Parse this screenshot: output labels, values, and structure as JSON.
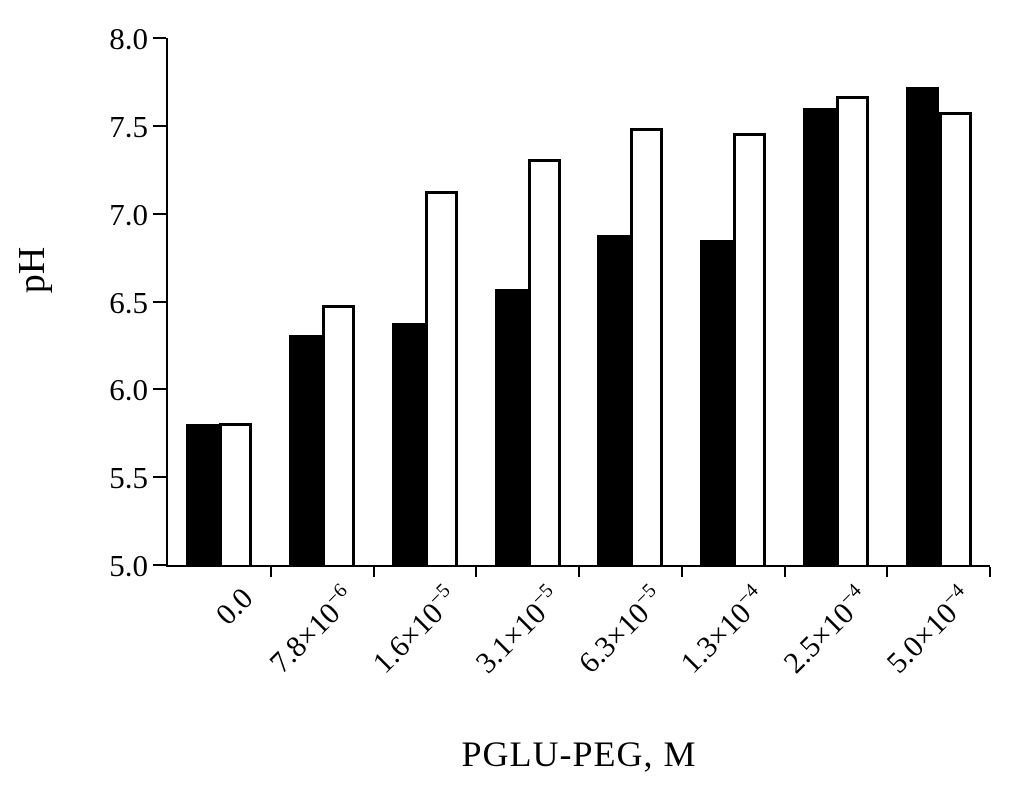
{
  "chart_data": {
    "type": "bar",
    "title": "",
    "xlabel": "PGLU-PEG, M",
    "ylabel": "pH",
    "ylim": [
      5.0,
      8.0
    ],
    "yticks": [
      5.0,
      5.5,
      6.0,
      6.5,
      7.0,
      7.5,
      8.0
    ],
    "grid": false,
    "legend": "none",
    "categories": [
      "0.0",
      "7.8×10^−6",
      "1.6×10^−5",
      "3.1×10^−5",
      "6.3×10^−5",
      "1.3×10^−4",
      "2.5×10^−4",
      "5.0×10^−4"
    ],
    "series": [
      {
        "name": "filled-black-bars",
        "values": [
          5.8,
          6.31,
          6.38,
          6.57,
          6.88,
          6.85,
          7.6,
          7.72
        ]
      },
      {
        "name": "open-white-bars",
        "values": [
          5.81,
          6.48,
          7.13,
          7.31,
          7.49,
          7.46,
          7.67,
          7.58
        ]
      }
    ],
    "colors": {
      "filled": "#000000",
      "open": "#ffffff",
      "axis": "#000000",
      "background": "#ffffff"
    }
  }
}
